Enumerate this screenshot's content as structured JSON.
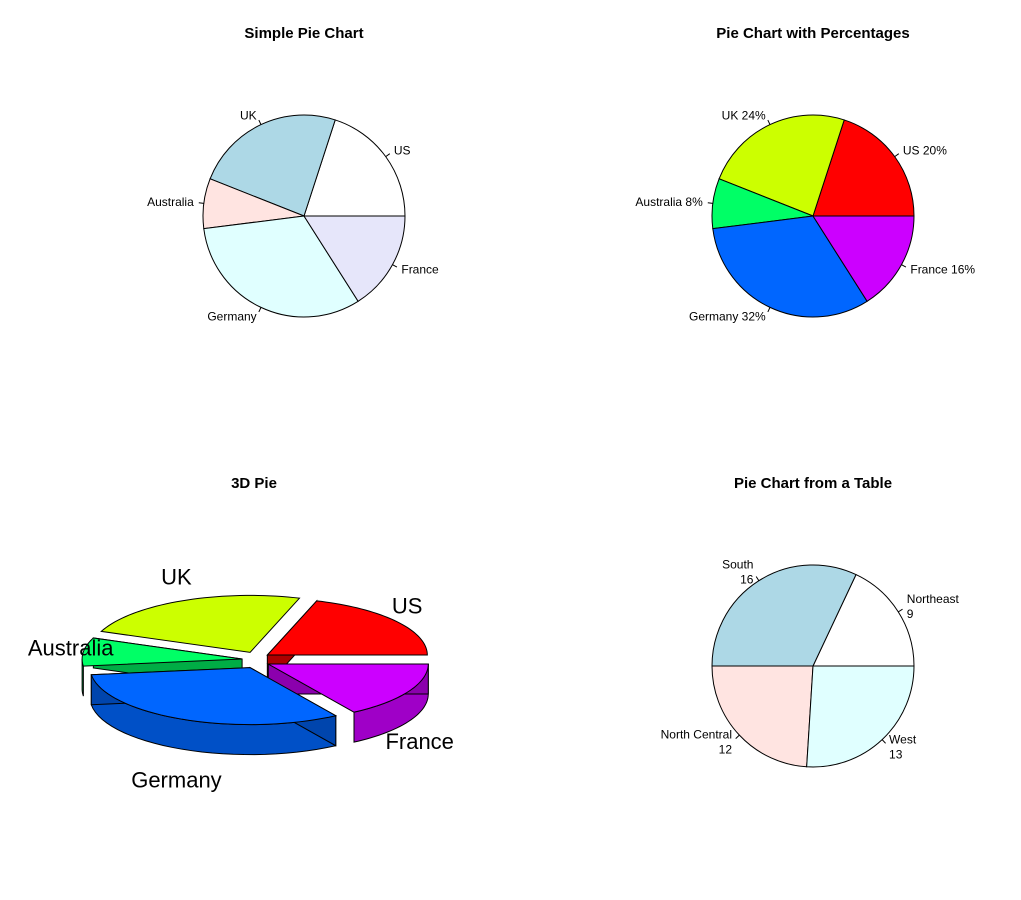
{
  "chart_data": [
    {
      "type": "pie",
      "title": "Simple Pie Chart",
      "categories": [
        "US",
        "UK",
        "Australia",
        "Germany",
        "France"
      ],
      "values": [
        10,
        12,
        4,
        16,
        8
      ],
      "labels": [
        "US",
        "UK",
        "Australia",
        "Germany",
        "France"
      ],
      "colors": [
        "#ffffff",
        "#add8e6",
        "#ffe4e1",
        "#e0ffff",
        "#e6e6fa"
      ]
    },
    {
      "type": "pie",
      "title": "Pie Chart with Percentages",
      "categories": [
        "US",
        "UK",
        "Australia",
        "Germany",
        "France"
      ],
      "values": [
        10,
        12,
        4,
        16,
        8
      ],
      "labels": [
        "US 20%",
        "UK 24%",
        "Australia 8%",
        "Germany 32%",
        "France 16%"
      ],
      "colors": [
        "#ff0000",
        "#ccff00",
        "#00ff66",
        "#0066ff",
        "#cc00ff"
      ]
    },
    {
      "type": "pie",
      "title": "3D Pie",
      "categories": [
        "US",
        "UK",
        "Australia",
        "Germany",
        "France"
      ],
      "values": [
        10,
        12,
        4,
        16,
        8
      ],
      "labels": [
        "US",
        "UK",
        "Australia",
        "Germany",
        "France"
      ],
      "colors": [
        "#ff0000",
        "#ccff00",
        "#00ff66",
        "#0066ff",
        "#cc00ff"
      ],
      "style": "3d-exploded"
    },
    {
      "type": "pie",
      "title": "Pie Chart from a Table",
      "categories": [
        "Northeast",
        "South",
        "North Central",
        "West"
      ],
      "values": [
        9,
        16,
        12,
        13
      ],
      "labels": [
        [
          "Northeast",
          "9"
        ],
        [
          "South",
          "16"
        ],
        [
          "North Central",
          "12"
        ],
        [
          "West",
          "13"
        ]
      ],
      "colors": [
        "#ffffff",
        "#add8e6",
        "#ffe4e1",
        "#e0ffff"
      ]
    }
  ]
}
